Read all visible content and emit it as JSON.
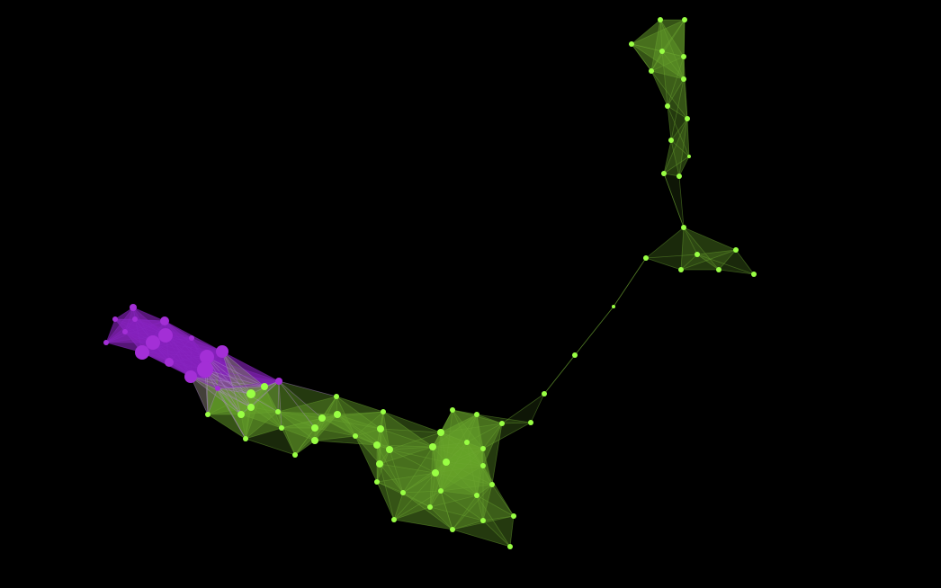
{
  "graph": {
    "background": "#000000",
    "clusters": [
      {
        "id": "purple-cluster",
        "color": "#a32fd6",
        "edge_color": "#8a27c4"
      },
      {
        "id": "green-cluster",
        "color": "#99ff44",
        "edge_color": "#6ea832"
      }
    ],
    "node_count": 118,
    "edge_style": "translucent triangulated mesh",
    "node_icon": "circle-dot-icon"
  }
}
